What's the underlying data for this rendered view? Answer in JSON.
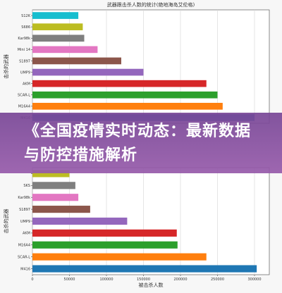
{
  "headline": "《全国疫情实时动态：最新数据与防控措施解析",
  "colors": {
    "banner": "#8a55a6",
    "grid": "#d6d6d6"
  },
  "chart_data": [
    {
      "type": "bar",
      "orientation": "horizontal",
      "title": "武器跟击杀人数的统计(绝地海岛艾伦格)",
      "ylabel": "击杀的武器",
      "xlabel": "",
      "categories": [
        "S12K",
        "S686",
        "Kar98k",
        "Mini 14",
        "S1897",
        "UMP9",
        "AKM",
        "SCAR-L",
        "M16A4",
        "M416"
      ],
      "values": [
        62000,
        68000,
        70000,
        88000,
        120000,
        150000,
        235000,
        250000,
        257000,
        300000
      ],
      "colors": [
        "#17becf",
        "#bcbd22",
        "#7f7f7f",
        "#e377c2",
        "#8c564b",
        "#9467bd",
        "#d62728",
        "#2ca02c",
        "#ff7f0e",
        "#1f77b4"
      ],
      "xlim": [
        0,
        320000
      ],
      "grid": true
    },
    {
      "type": "bar",
      "orientation": "horizontal",
      "title": "",
      "ylabel": "击杀的武器",
      "xlabel": "被击杀人数",
      "categories": [
        "",
        "SKS",
        "Kar98k",
        "S1897",
        "UMP9",
        "AKM",
        "M16A4",
        "SCAR-L",
        "M416"
      ],
      "values": [
        50000,
        58000,
        62000,
        78000,
        128000,
        195000,
        196000,
        235000,
        303000
      ],
      "colors": [
        "#bcbd22",
        "#7f7f7f",
        "#e377c2",
        "#8c564b",
        "#9467bd",
        "#d62728",
        "#2ca02c",
        "#ff7f0e",
        "#1f77b4"
      ],
      "xlim": [
        0,
        320000
      ],
      "xticks": [
        "0",
        "50000",
        "100000",
        "150000",
        "200000",
        "250000",
        "300000"
      ],
      "grid": true
    }
  ]
}
